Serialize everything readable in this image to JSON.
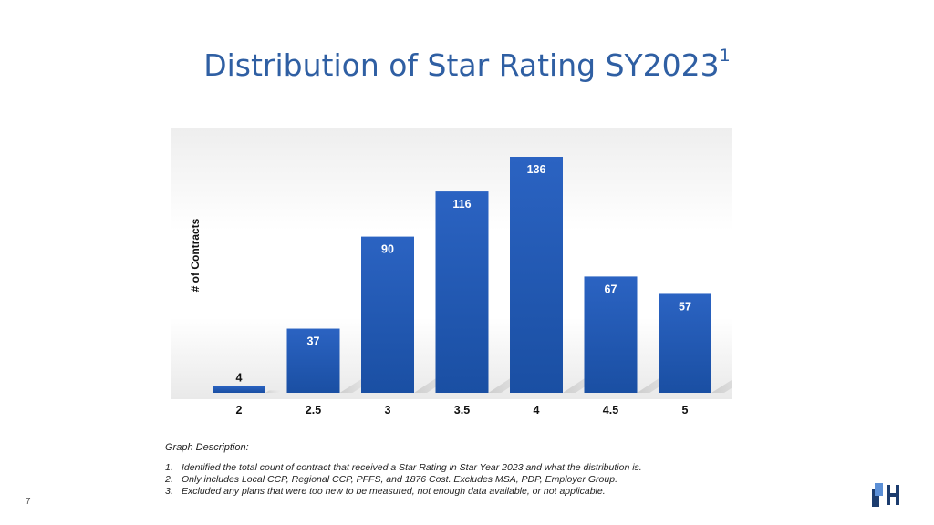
{
  "title": {
    "text": "Distribution of Star Rating SY2023",
    "superscript": "1"
  },
  "chart_data": {
    "type": "bar",
    "title": "Distribution of Star Rating SY2023",
    "xlabel": "",
    "ylabel": "# of Contracts",
    "categories": [
      "2",
      "2.5",
      "3",
      "3.5",
      "4",
      "4.5",
      "5"
    ],
    "values": [
      4,
      37,
      90,
      116,
      136,
      67,
      57
    ],
    "ylim": [
      0,
      150
    ],
    "grid": false,
    "bar_color": "#1a4fa3"
  },
  "description": {
    "heading": "Graph Description:",
    "items": [
      {
        "num": "1.",
        "text": "Identified the total count of contract that received a Star Rating in Star Year 2023 and what the distribution is."
      },
      {
        "num": "2.",
        "text": "Only includes Local CCP, Regional CCP, PFFS, and 1876 Cost. Excludes MSA, PDP, Employer Group."
      },
      {
        "num": "3.",
        "text": "Excluded any plans that were too new to be measured, not enough data available, or not applicable."
      }
    ]
  },
  "page_number": "7",
  "logo": {
    "name": "company-logo",
    "color": "#1c3c6e"
  }
}
